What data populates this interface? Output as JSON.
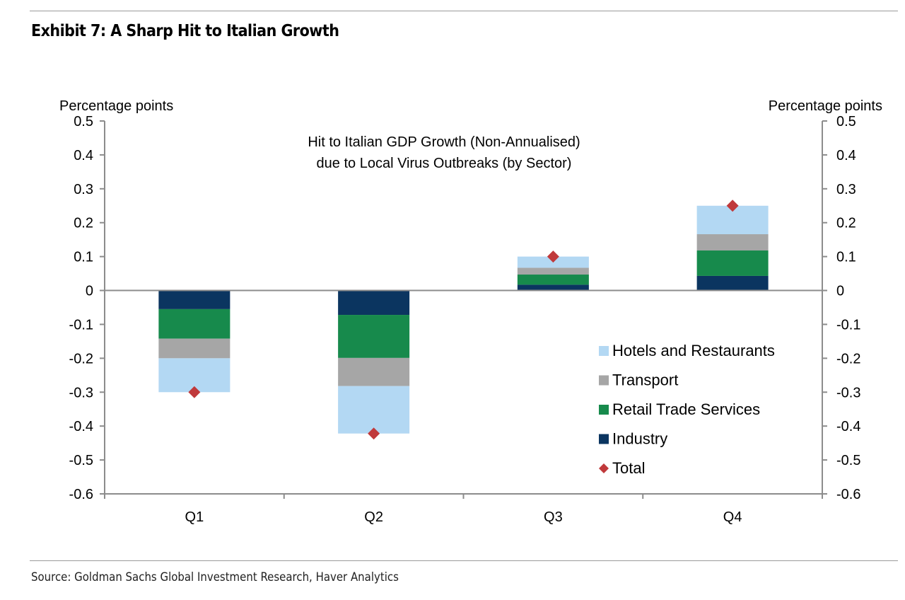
{
  "header": {
    "title": "Exhibit 7: A Sharp Hit to Italian Growth"
  },
  "footer": {
    "source": "Source: Goldman Sachs Global Investment Research, Haver Analytics"
  },
  "chart_data": {
    "type": "bar",
    "stacked": true,
    "title_lines": [
      "Hit to Italian GDP Growth (Non-Annualised)",
      "due to Local Virus Outbreaks (by Sector)"
    ],
    "ylabel_left": "Percentage points",
    "ylabel_right": "Percentage points",
    "ylim": [
      -0.6,
      0.5
    ],
    "yticks": [
      0.5,
      0.4,
      0.3,
      0.2,
      0.1,
      0,
      -0.1,
      -0.2,
      -0.3,
      -0.4,
      -0.5,
      -0.6
    ],
    "ytick_labels": [
      "0.5",
      "0.4",
      "0.3",
      "0.2",
      "0.1",
      "0",
      "-0.1",
      "-0.2",
      "-0.3",
      "-0.4",
      "-0.5",
      "-0.6"
    ],
    "grid": false,
    "categories": [
      "Q1",
      "Q2",
      "Q3",
      "Q4"
    ],
    "series": [
      {
        "name": "Industry",
        "color": "#0b3560",
        "values": [
          -0.055,
          -0.072,
          0.017,
          0.043
        ]
      },
      {
        "name": "Retail Trade Services",
        "color": "#178a4c",
        "values": [
          -0.087,
          -0.127,
          0.03,
          0.075
        ]
      },
      {
        "name": "Transport",
        "color": "#a6a6a6",
        "values": [
          -0.058,
          -0.083,
          0.02,
          0.048
        ]
      },
      {
        "name": "Hotels and Restaurants",
        "color": "#b3d8f3",
        "values": [
          -0.1,
          -0.14,
          0.033,
          0.084
        ]
      }
    ],
    "total": {
      "name": "Total",
      "color": "#c0393b",
      "values": [
        -0.3,
        -0.422,
        0.1,
        0.25
      ]
    },
    "legend": {
      "placement": "lower-right",
      "order": [
        "Hotels and Restaurants",
        "Transport",
        "Retail Trade Services",
        "Industry",
        "Total"
      ]
    }
  }
}
